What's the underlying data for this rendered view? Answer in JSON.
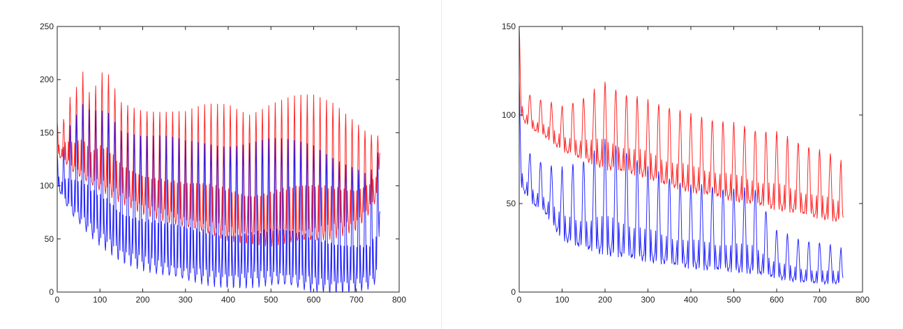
{
  "chart_data": [
    {
      "type": "line",
      "xlim": [
        0,
        800
      ],
      "ylim": [
        0,
        250
      ],
      "xticks": [
        0,
        100,
        200,
        300,
        400,
        500,
        600,
        700,
        800
      ],
      "yticks": [
        0,
        50,
        100,
        150,
        200,
        250
      ],
      "x_tick_labels": [
        "0",
        "100",
        "200",
        "300",
        "400",
        "500",
        "600",
        "700",
        "800"
      ],
      "y_tick_labels": [
        "0",
        "50",
        "100",
        "150",
        "200",
        "250"
      ],
      "grid": false,
      "series": [
        {
          "color": "#ff0000",
          "x": [
            0,
            10,
            22,
            38,
            60,
            80,
            100,
            118,
            150,
            200,
            250,
            300,
            350,
            400,
            450,
            500,
            550,
            600,
            650,
            700,
            730,
            750,
            755
          ],
          "peaks": [
            160,
            150,
            180,
            185,
            205,
            180,
            205,
            206,
            180,
            173,
            170,
            168,
            175,
            178,
            170,
            178,
            182,
            183,
            178,
            162,
            150,
            148,
            135
          ],
          "troughs": [
            130,
            125,
            120,
            112,
            105,
            100,
            95,
            92,
            85,
            75,
            68,
            60,
            55,
            50,
            47,
            45,
            46,
            47,
            52,
            60,
            75,
            90,
            130
          ],
          "period": 15
        },
        {
          "color": "#0000ff",
          "x": [
            0,
            10,
            22,
            38,
            60,
            80,
            100,
            118,
            150,
            200,
            250,
            300,
            350,
            400,
            450,
            500,
            550,
            600,
            650,
            700,
            730,
            750,
            755
          ],
          "peaks": [
            130,
            125,
            150,
            160,
            175,
            170,
            172,
            172,
            155,
            148,
            145,
            140,
            140,
            140,
            142,
            143,
            140,
            138,
            128,
            118,
            110,
            130,
            80
          ],
          "troughs": [
            100,
            90,
            80,
            70,
            60,
            52,
            45,
            40,
            30,
            22,
            15,
            10,
            8,
            6,
            6,
            6,
            4,
            0,
            0,
            2,
            4,
            10,
            75
          ],
          "period": 15
        }
      ]
    },
    {
      "type": "line",
      "xlim": [
        0,
        800
      ],
      "ylim": [
        0,
        150
      ],
      "xticks": [
        0,
        100,
        200,
        300,
        400,
        500,
        600,
        700,
        800
      ],
      "yticks": [
        0,
        50,
        100,
        150
      ],
      "x_tick_labels": [
        "0",
        "100",
        "200",
        "300",
        "400",
        "500",
        "600",
        "700",
        "800"
      ],
      "y_tick_labels": [
        "0",
        "50",
        "100",
        "150"
      ],
      "grid": false,
      "series": [
        {
          "color": "#ff0000",
          "x": [
            0,
            5,
            15,
            30,
            60,
            100,
            150,
            200,
            250,
            300,
            350,
            400,
            450,
            500,
            550,
            600,
            650,
            700,
            750,
            755
          ],
          "peaks": [
            150,
            120,
            115,
            110,
            108,
            105,
            110,
            118,
            112,
            108,
            105,
            100,
            98,
            95,
            92,
            90,
            85,
            80,
            75,
            42
          ],
          "troughs": [
            110,
            100,
            95,
            92,
            88,
            80,
            75,
            70,
            68,
            65,
            60,
            57,
            55,
            52,
            50,
            47,
            45,
            42,
            40,
            42
          ],
          "period": 25
        },
        {
          "color": "#0000ff",
          "x": [
            0,
            5,
            15,
            30,
            60,
            100,
            150,
            200,
            250,
            300,
            350,
            400,
            450,
            500,
            550,
            600,
            650,
            700,
            750,
            755
          ],
          "peaks": [
            118,
            85,
            80,
            78,
            72,
            70,
            75,
            85,
            80,
            70,
            65,
            60,
            60,
            58,
            58,
            35,
            30,
            28,
            25,
            8
          ],
          "troughs": [
            80,
            60,
            55,
            50,
            45,
            30,
            25,
            22,
            20,
            18,
            16,
            14,
            13,
            12,
            11,
            8,
            6,
            5,
            5,
            8
          ],
          "period": 25
        }
      ]
    }
  ]
}
